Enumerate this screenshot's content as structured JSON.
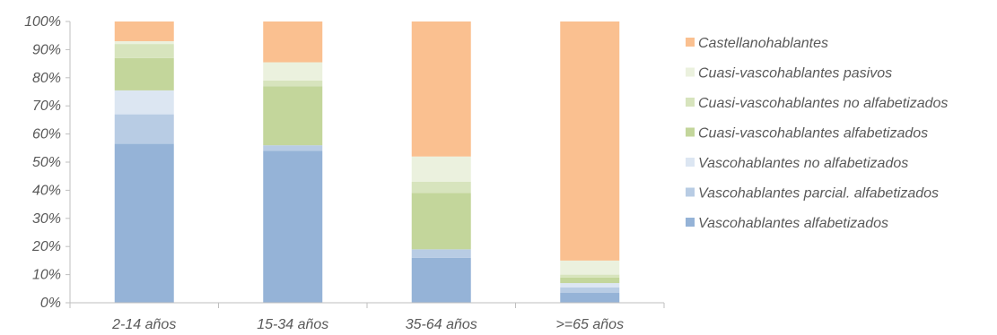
{
  "chart_data": {
    "type": "bar",
    "stacked": true,
    "normalized": true,
    "categories": [
      "2-14 años",
      "15-34 años",
      "35-64 años",
      ">=65 años"
    ],
    "ylim": [
      0,
      100
    ],
    "yticks": [
      "0%",
      "10%",
      "20%",
      "30%",
      "40%",
      "50%",
      "60%",
      "70%",
      "80%",
      "90%",
      "100%"
    ],
    "legend_position": "right",
    "grid": false,
    "series": [
      {
        "name": "Vascohablantes alfabetizados",
        "color": "#95b3d7",
        "values": [
          56.5,
          54.0,
          16.0,
          3.5
        ]
      },
      {
        "name": "Vascohablantes parcial. alfabetizados",
        "color": "#b8cce4",
        "values": [
          10.5,
          2.0,
          3.0,
          2.0
        ]
      },
      {
        "name": "Vascohablantes no alfabetizados",
        "color": "#dce6f2",
        "values": [
          8.5,
          0,
          0,
          1.5
        ]
      },
      {
        "name": "Cuasi-vascohablantes alfabetizados",
        "color": "#c3d69b",
        "values": [
          11.5,
          21.0,
          20.0,
          2.0
        ]
      },
      {
        "name": "Cuasi-vascohablantes no alfabetizados",
        "color": "#d7e4bd",
        "values": [
          5.0,
          2.0,
          4.0,
          1.0
        ]
      },
      {
        "name": "Cuasi-vascohablantes pasivos",
        "color": "#ebf1de",
        "values": [
          1.0,
          6.5,
          9.0,
          5.0
        ]
      },
      {
        "name": "Castellanohablantes",
        "color": "#fac090",
        "values": [
          7.0,
          14.5,
          48.0,
          85.0
        ]
      }
    ],
    "legend_order": [
      "Castellanohablantes",
      "Cuasi-vascohablantes pasivos",
      "Cuasi-vascohablantes no alfabetizados",
      "Cuasi-vascohablantes alfabetizados",
      "Vascohablantes no alfabetizados",
      "Vascohablantes parcial. alfabetizados",
      "Vascohablantes alfabetizados"
    ]
  }
}
